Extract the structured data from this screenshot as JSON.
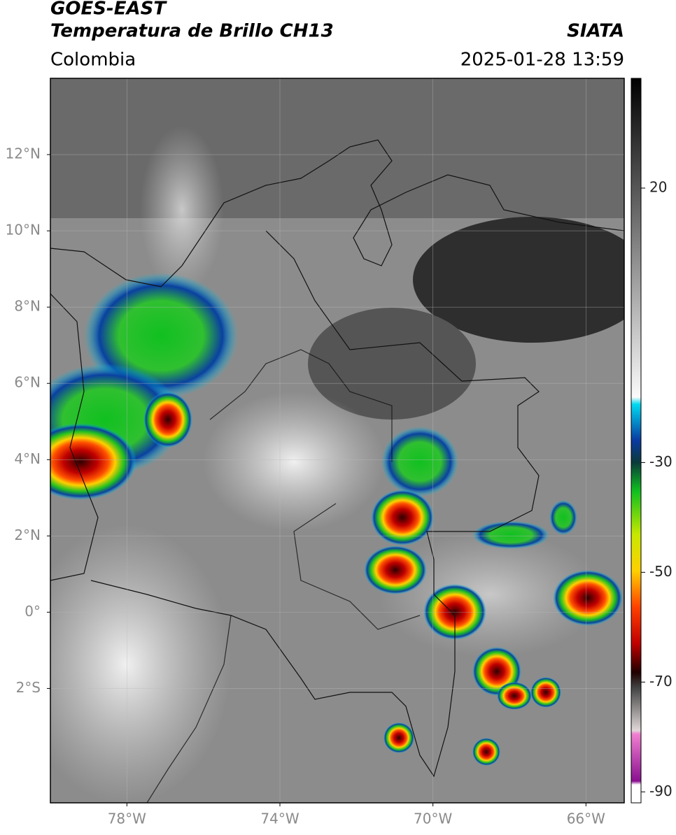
{
  "header": {
    "title": "GOES-EAST",
    "subtitle": "Temperatura de Brillo CH13",
    "source": "SIATA",
    "region": "Colombia",
    "timestamp": "2025-01-28 13:59"
  },
  "map": {
    "lon_lim": [
      -80,
      -65
    ],
    "lat_lim": [
      -5,
      14
    ],
    "lon_ticks": [
      {
        "value": -78,
        "label": "78°W"
      },
      {
        "value": -74,
        "label": "74°W"
      },
      {
        "value": -70,
        "label": "70°W"
      },
      {
        "value": -66,
        "label": "66°W"
      }
    ],
    "lat_ticks": [
      {
        "value": 12,
        "label": "12°N"
      },
      {
        "value": 10,
        "label": "10°N"
      },
      {
        "value": 8,
        "label": "8°N"
      },
      {
        "value": 6,
        "label": "6°N"
      },
      {
        "value": 4,
        "label": "4°N"
      },
      {
        "value": 2,
        "label": "2°N"
      },
      {
        "value": 0,
        "label": "0°"
      },
      {
        "value": -2,
        "label": "2°S"
      }
    ],
    "grid": true
  },
  "colorbar": {
    "lim": [
      -92,
      40
    ],
    "ticks": [
      20,
      -30,
      -50,
      -70,
      -90
    ]
  }
}
